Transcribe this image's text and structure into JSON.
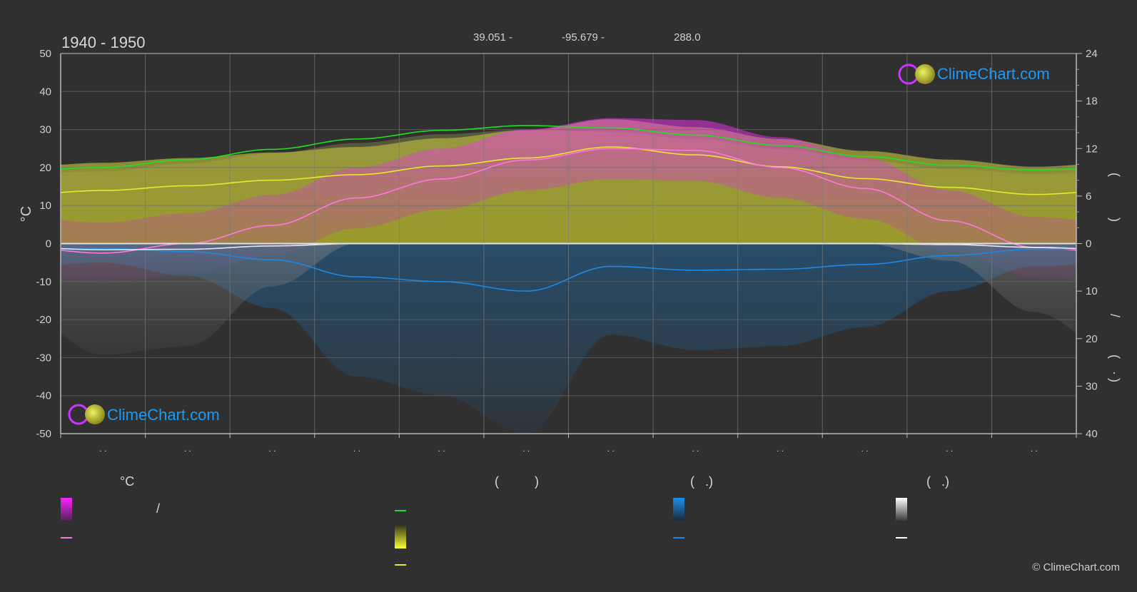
{
  "header": {
    "period": "1940 - 1950",
    "lat": "39.051 -",
    "lon": "-95.679 -",
    "elev": "288.0"
  },
  "logo_text": "ClimeChart.com",
  "copyright": "© ClimeChart.com",
  "legend": {
    "temp_unit": "°C",
    "col2_header": "(          )",
    "col3_header": "(   .)",
    "col4_header": "(   .)",
    "slash": "/"
  },
  "colors": {
    "background": "#303030",
    "grid": "#5a5a5a",
    "daylight": "#22dd22",
    "sunshine": "#e8e830",
    "temp_mean": "#ff77dd",
    "temp_range": "#dd22dd",
    "rain": "#1e88e5",
    "snow": "#ffffff",
    "logo_blue": "#1e9af5"
  },
  "chart_data": {
    "type": "line",
    "title": "1940 - 1950",
    "ylabel_left": "°C",
    "ylim_left": [
      -50,
      50
    ],
    "yticks_left": [
      50,
      40,
      30,
      20,
      10,
      0,
      -10,
      -20,
      -30,
      -40,
      -50
    ],
    "yticks_right_top": [
      24,
      18,
      12,
      6,
      0
    ],
    "yticks_right_bottom": [
      10,
      20,
      30,
      40
    ],
    "months": 12,
    "grid": true,
    "series": [
      {
        "key": "daylight",
        "unit": "h",
        "values": [
          9.6,
          10.6,
          11.9,
          13.2,
          14.3,
          14.9,
          14.6,
          13.7,
          12.4,
          11.0,
          9.9,
          9.3
        ]
      },
      {
        "key": "sunshine",
        "unit": "h",
        "values": [
          6.7,
          7.3,
          8.0,
          8.7,
          9.8,
          10.8,
          12.2,
          11.2,
          9.7,
          8.2,
          7.1,
          6.2
        ]
      },
      {
        "key": "temp_mean",
        "unit": "°C",
        "values": [
          -2.5,
          0.0,
          4.8,
          12.0,
          17.0,
          22.0,
          25.0,
          24.5,
          20.0,
          14.5,
          6.0,
          -1.0
        ]
      },
      {
        "key": "rain",
        "unit": "mm/day",
        "values": [
          1.0,
          1.7,
          3.4,
          7.0,
          8.0,
          10.0,
          4.8,
          5.6,
          5.4,
          4.4,
          2.5,
          1.2
        ]
      },
      {
        "key": "snow",
        "unit": "mm/day",
        "values": [
          1.3,
          1.2,
          0.5,
          0.0,
          0.0,
          0.0,
          0.0,
          0.0,
          0.0,
          0.0,
          0.2,
          0.8
        ]
      }
    ]
  }
}
